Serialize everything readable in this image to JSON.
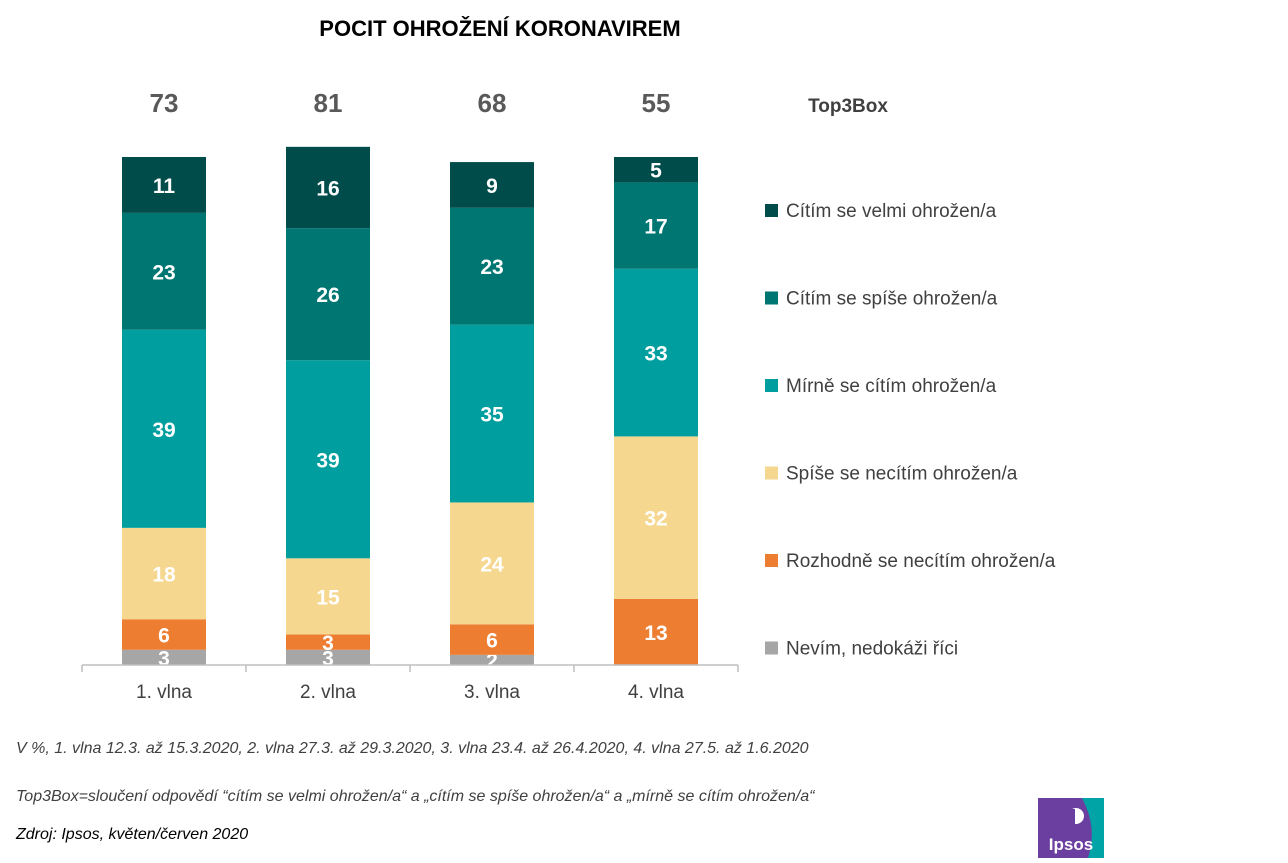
{
  "chart_data": {
    "type": "bar",
    "stacked": true,
    "title": "POCIT OHROŽENÍ KORONAVIREM",
    "categories": [
      "1. vlna",
      "2. vlna",
      "3. vlna",
      "4. vlna"
    ],
    "top3box_label": "Top3Box",
    "top3box_values": [
      73,
      81,
      68,
      55
    ],
    "ylim": [
      0,
      100
    ],
    "legend_position": "right",
    "series": [
      {
        "name": "Nevím, nedokáži říci",
        "color": "#A6A6A6",
        "values": [
          3,
          3,
          2,
          0
        ],
        "labels": [
          "3",
          "3",
          "2",
          ""
        ]
      },
      {
        "name": "Rozhodně se necítím ohrožen/a",
        "color": "#ED7D31",
        "values": [
          6,
          3,
          6,
          13
        ],
        "labels": [
          "6",
          "3",
          "6",
          "13"
        ]
      },
      {
        "name": "Spíše se necítím ohrožen/a",
        "color": "#F6D790",
        "values": [
          18,
          15,
          24,
          32
        ],
        "labels": [
          "18",
          "15",
          "24",
          "32"
        ]
      },
      {
        "name": "Mírně se cítím ohrožen/a",
        "color": "#009E9E",
        "values": [
          39,
          39,
          35,
          33
        ],
        "labels": [
          "39",
          "39",
          "35",
          "33"
        ]
      },
      {
        "name": "Cítím se spíše ohrožen/a",
        "color": "#007672",
        "values": [
          23,
          26,
          23,
          17
        ],
        "labels": [
          "23",
          "26",
          "23",
          "17"
        ]
      },
      {
        "name": "Cítím se velmi ohrožen/a",
        "color": "#004C4B",
        "values": [
          11,
          16,
          9,
          5
        ],
        "labels": [
          "11",
          "16",
          "9",
          "5"
        ]
      }
    ]
  },
  "notes": {
    "line1": "V %, 1. vlna 12.3. až 15.3.2020, 2. vlna 27.3. až 29.3.2020, 3. vlna 23.4. až 26.4.2020, 4. vlna 27.5. až 1.6.2020",
    "line2": "Top3Box=sloučení odpovědí “cítím se velmi ohrožen/a“ a „cítím se spíše ohrožen/a“ a „mírně se cítím ohrožen/a“",
    "source": "Zdroj: Ipsos, květen/červen 2020"
  },
  "logo": {
    "text": "Ipsos",
    "color_main": "#6B3FA0",
    "color_accent": "#00A3A6"
  }
}
